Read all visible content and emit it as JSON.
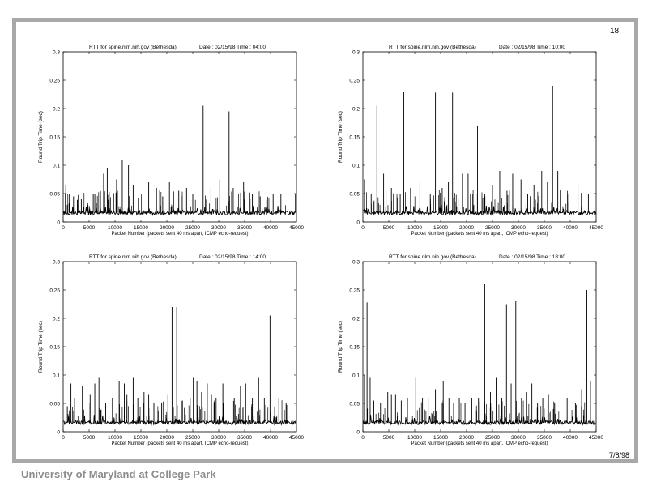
{
  "page": {
    "page_number": "18",
    "date": "7/8/98",
    "footer": "University of Maryland at College Park"
  },
  "colors": {
    "frame_border": "#a8a8a8",
    "footer_text": "#8c8c8c",
    "ink": "#000000"
  },
  "chart_data": [
    {
      "type": "line",
      "title": "RTT for spine.nlm.nih.gov (Bethesda)",
      "date_text": "Date : 02/15/98   Time : 04:00",
      "xlabel": "Packet Number (packets sent 40 ms apart, ICMP echo-request)",
      "ylabel": "Round Trip Time (sec)",
      "xlim": [
        0,
        45000
      ],
      "ylim": [
        0,
        0.3
      ],
      "xticks": [
        "0",
        "5000",
        "10000",
        "15000",
        "20000",
        "25000",
        "30000",
        "35000",
        "40000",
        "45000"
      ],
      "yticks": [
        "0",
        "0.05",
        "0.1",
        "0.15",
        "0.2",
        "0.25",
        "0.3"
      ],
      "baseline": 0.016,
      "spikes": [
        {
          "x": 500,
          "y": 0.065
        },
        {
          "x": 1200,
          "y": 0.05
        },
        {
          "x": 2000,
          "y": 0.045
        },
        {
          "x": 3500,
          "y": 0.04
        },
        {
          "x": 5800,
          "y": 0.05
        },
        {
          "x": 7800,
          "y": 0.085
        },
        {
          "x": 8500,
          "y": 0.095
        },
        {
          "x": 10300,
          "y": 0.075
        },
        {
          "x": 11400,
          "y": 0.11
        },
        {
          "x": 12600,
          "y": 0.1
        },
        {
          "x": 13500,
          "y": 0.065
        },
        {
          "x": 15400,
          "y": 0.19
        },
        {
          "x": 16500,
          "y": 0.07
        },
        {
          "x": 18000,
          "y": 0.06
        },
        {
          "x": 19200,
          "y": 0.045
        },
        {
          "x": 20500,
          "y": 0.07
        },
        {
          "x": 22300,
          "y": 0.055
        },
        {
          "x": 23800,
          "y": 0.06
        },
        {
          "x": 25000,
          "y": 0.05
        },
        {
          "x": 27000,
          "y": 0.205
        },
        {
          "x": 28500,
          "y": 0.06
        },
        {
          "x": 30200,
          "y": 0.075
        },
        {
          "x": 32000,
          "y": 0.195
        },
        {
          "x": 32800,
          "y": 0.06
        },
        {
          "x": 34300,
          "y": 0.1
        },
        {
          "x": 34800,
          "y": 0.07
        },
        {
          "x": 36500,
          "y": 0.05
        },
        {
          "x": 38000,
          "y": 0.045
        },
        {
          "x": 40500,
          "y": 0.05
        },
        {
          "x": 42000,
          "y": 0.05
        },
        {
          "x": 44800,
          "y": 0.05
        }
      ]
    },
    {
      "type": "line",
      "title": "RTT for spine.nlm.nih.gov (Bethesda)",
      "date_text": "Date : 02/15/98   Time : 10:00",
      "xlabel": "Packet Number (packets sent 40 ms apart, ICMP echo-request)",
      "ylabel": "Round Trip Time (sec)",
      "xlim": [
        0,
        45000
      ],
      "ylim": [
        0,
        0.3
      ],
      "xticks": [
        "0",
        "5000",
        "10000",
        "15000",
        "20000",
        "25000",
        "30000",
        "35000",
        "40000",
        "45000"
      ],
      "yticks": [
        "0",
        "0.05",
        "0.1",
        "0.15",
        "0.2",
        "0.25",
        "0.3"
      ],
      "baseline": 0.016,
      "spikes": [
        {
          "x": 300,
          "y": 0.075
        },
        {
          "x": 1600,
          "y": 0.05
        },
        {
          "x": 2700,
          "y": 0.205
        },
        {
          "x": 4000,
          "y": 0.085
        },
        {
          "x": 5500,
          "y": 0.06
        },
        {
          "x": 7200,
          "y": 0.05
        },
        {
          "x": 7900,
          "y": 0.23
        },
        {
          "x": 9200,
          "y": 0.06
        },
        {
          "x": 11000,
          "y": 0.07
        },
        {
          "x": 13000,
          "y": 0.05
        },
        {
          "x": 14000,
          "y": 0.228
        },
        {
          "x": 15300,
          "y": 0.06
        },
        {
          "x": 16500,
          "y": 0.07
        },
        {
          "x": 17300,
          "y": 0.228
        },
        {
          "x": 19200,
          "y": 0.085
        },
        {
          "x": 20300,
          "y": 0.085
        },
        {
          "x": 21200,
          "y": 0.05
        },
        {
          "x": 22100,
          "y": 0.17
        },
        {
          "x": 23500,
          "y": 0.05
        },
        {
          "x": 25000,
          "y": 0.065
        },
        {
          "x": 26400,
          "y": 0.09
        },
        {
          "x": 27800,
          "y": 0.055
        },
        {
          "x": 28900,
          "y": 0.085
        },
        {
          "x": 30500,
          "y": 0.075
        },
        {
          "x": 31800,
          "y": 0.05
        },
        {
          "x": 33000,
          "y": 0.065
        },
        {
          "x": 34500,
          "y": 0.09
        },
        {
          "x": 35600,
          "y": 0.07
        },
        {
          "x": 36600,
          "y": 0.24
        },
        {
          "x": 37600,
          "y": 0.09
        },
        {
          "x": 39500,
          "y": 0.05
        },
        {
          "x": 41500,
          "y": 0.065
        },
        {
          "x": 43500,
          "y": 0.05
        }
      ]
    },
    {
      "type": "line",
      "title": "RTT for spine.nlm.nih.gov (Bethesda)",
      "date_text": "Date : 02/15/98   Time : 14:00",
      "xlabel": "Packet Number (packets sent 40 ms apart, ICMP echo-request)",
      "ylabel": "Round Trip Time (sec)",
      "xlim": [
        0,
        45000
      ],
      "ylim": [
        0,
        0.3
      ],
      "xticks": [
        "0",
        "5000",
        "10000",
        "15000",
        "20000",
        "25000",
        "30000",
        "35000",
        "40000",
        "45000"
      ],
      "yticks": [
        "0",
        "0.05",
        "0.1",
        "0.15",
        "0.2",
        "0.25",
        "0.3"
      ],
      "baseline": 0.016,
      "spikes": [
        {
          "x": 800,
          "y": 0.045
        },
        {
          "x": 1500,
          "y": 0.085
        },
        {
          "x": 2200,
          "y": 0.06
        },
        {
          "x": 3700,
          "y": 0.08
        },
        {
          "x": 5200,
          "y": 0.065
        },
        {
          "x": 6100,
          "y": 0.085
        },
        {
          "x": 6900,
          "y": 0.095
        },
        {
          "x": 8200,
          "y": 0.05
        },
        {
          "x": 9500,
          "y": 0.06
        },
        {
          "x": 10800,
          "y": 0.09
        },
        {
          "x": 11800,
          "y": 0.085
        },
        {
          "x": 12300,
          "y": 0.065
        },
        {
          "x": 13500,
          "y": 0.095
        },
        {
          "x": 14400,
          "y": 0.06
        },
        {
          "x": 15600,
          "y": 0.07
        },
        {
          "x": 16500,
          "y": 0.065
        },
        {
          "x": 17500,
          "y": 0.05
        },
        {
          "x": 19000,
          "y": 0.05
        },
        {
          "x": 20200,
          "y": 0.065
        },
        {
          "x": 21000,
          "y": 0.22
        },
        {
          "x": 21900,
          "y": 0.22
        },
        {
          "x": 23000,
          "y": 0.055
        },
        {
          "x": 24500,
          "y": 0.06
        },
        {
          "x": 25100,
          "y": 0.095
        },
        {
          "x": 25800,
          "y": 0.09
        },
        {
          "x": 26700,
          "y": 0.07
        },
        {
          "x": 27800,
          "y": 0.085
        },
        {
          "x": 28600,
          "y": 0.065
        },
        {
          "x": 29500,
          "y": 0.06
        },
        {
          "x": 30800,
          "y": 0.085
        },
        {
          "x": 31800,
          "y": 0.23
        },
        {
          "x": 33000,
          "y": 0.06
        },
        {
          "x": 34200,
          "y": 0.08
        },
        {
          "x": 35200,
          "y": 0.085
        },
        {
          "x": 36500,
          "y": 0.06
        },
        {
          "x": 37700,
          "y": 0.095
        },
        {
          "x": 38800,
          "y": 0.06
        },
        {
          "x": 39900,
          "y": 0.205
        },
        {
          "x": 41600,
          "y": 0.06
        },
        {
          "x": 43000,
          "y": 0.05
        }
      ]
    },
    {
      "type": "line",
      "title": "RTT for spine.nlm.nih.gov (Bethesda)",
      "date_text": "Date : 02/15/98   Time : 18:00",
      "xlabel": "Packet Number (packets sent 40 ms apart, ICMP echo-request)",
      "ylabel": "Round Trip Time (sec)",
      "xlim": [
        0,
        45000
      ],
      "ylim": [
        0,
        0.3
      ],
      "xticks": [
        "0",
        "5000",
        "10000",
        "15000",
        "20000",
        "25000",
        "30000",
        "35000",
        "40000",
        "45000"
      ],
      "yticks": [
        "0",
        "0.05",
        "0.1",
        "0.15",
        "0.2",
        "0.25",
        "0.3"
      ],
      "baseline": 0.016,
      "spikes": [
        {
          "x": 300,
          "y": 0.1
        },
        {
          "x": 800,
          "y": 0.228
        },
        {
          "x": 1400,
          "y": 0.095
        },
        {
          "x": 2100,
          "y": 0.055
        },
        {
          "x": 3400,
          "y": 0.05
        },
        {
          "x": 4800,
          "y": 0.07
        },
        {
          "x": 5500,
          "y": 0.065
        },
        {
          "x": 6300,
          "y": 0.065
        },
        {
          "x": 7400,
          "y": 0.055
        },
        {
          "x": 8600,
          "y": 0.06
        },
        {
          "x": 10200,
          "y": 0.095
        },
        {
          "x": 11500,
          "y": 0.06
        },
        {
          "x": 12600,
          "y": 0.06
        },
        {
          "x": 14000,
          "y": 0.075
        },
        {
          "x": 15500,
          "y": 0.09
        },
        {
          "x": 16600,
          "y": 0.06
        },
        {
          "x": 17500,
          "y": 0.05
        },
        {
          "x": 18600,
          "y": 0.06
        },
        {
          "x": 19700,
          "y": 0.05
        },
        {
          "x": 21000,
          "y": 0.06
        },
        {
          "x": 22300,
          "y": 0.06
        },
        {
          "x": 23500,
          "y": 0.26
        },
        {
          "x": 24600,
          "y": 0.07
        },
        {
          "x": 25700,
          "y": 0.095
        },
        {
          "x": 26800,
          "y": 0.06
        },
        {
          "x": 27700,
          "y": 0.225
        },
        {
          "x": 28600,
          "y": 0.085
        },
        {
          "x": 29500,
          "y": 0.23
        },
        {
          "x": 30600,
          "y": 0.06
        },
        {
          "x": 31600,
          "y": 0.07
        },
        {
          "x": 32600,
          "y": 0.085
        },
        {
          "x": 33700,
          "y": 0.05
        },
        {
          "x": 34700,
          "y": 0.06
        },
        {
          "x": 35800,
          "y": 0.065
        },
        {
          "x": 37000,
          "y": 0.05
        },
        {
          "x": 38200,
          "y": 0.05
        },
        {
          "x": 39400,
          "y": 0.06
        },
        {
          "x": 41000,
          "y": 0.05
        },
        {
          "x": 42200,
          "y": 0.075
        },
        {
          "x": 43200,
          "y": 0.25
        },
        {
          "x": 43900,
          "y": 0.09
        }
      ]
    }
  ]
}
